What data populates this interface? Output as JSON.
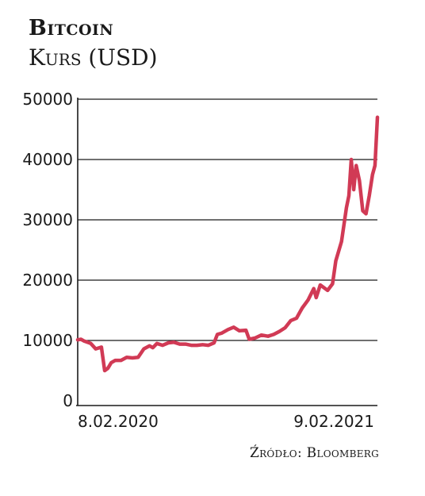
{
  "chart_data": {
    "type": "line",
    "title": "Bitcoin",
    "subtitle": "Kurs (USD)",
    "source": "Źródło: Bloomberg",
    "ylim": [
      0,
      50000
    ],
    "yticks": [
      0,
      10000,
      20000,
      30000,
      40000,
      50000
    ],
    "ytick_labels": [
      "0",
      "10000",
      "20000",
      "30000",
      "40000",
      "50000"
    ],
    "xlim": [
      "2020-02-08",
      "2021-02-09"
    ],
    "xticks": [
      {
        "date": "2020-02-08",
        "label": "8.02.2020"
      },
      {
        "date": "2021-02-09",
        "label": "9.02.2021"
      }
    ],
    "grid": true,
    "line_color": "#d13a55",
    "series": [
      {
        "x": [
          "2020-02-08",
          "2020-02-12",
          "2020-02-16",
          "2020-02-20",
          "2020-02-24",
          "2020-03-01",
          "2020-03-08",
          "2020-03-12",
          "2020-03-16",
          "2020-03-20",
          "2020-03-25",
          "2020-04-01",
          "2020-04-08",
          "2020-04-15",
          "2020-04-22",
          "2020-04-29",
          "2020-05-06",
          "2020-05-10",
          "2020-05-15",
          "2020-05-22",
          "2020-05-29",
          "2020-06-05",
          "2020-06-12",
          "2020-06-19",
          "2020-06-26",
          "2020-07-03",
          "2020-07-10",
          "2020-07-17",
          "2020-07-24",
          "2020-07-28",
          "2020-08-02",
          "2020-08-10",
          "2020-08-17",
          "2020-08-24",
          "2020-09-01",
          "2020-09-05",
          "2020-09-12",
          "2020-09-20",
          "2020-09-28",
          "2020-10-05",
          "2020-10-12",
          "2020-10-19",
          "2020-10-26",
          "2020-11-02",
          "2020-11-09",
          "2020-11-16",
          "2020-11-23",
          "2020-11-26",
          "2020-12-01",
          "2020-12-10",
          "2020-12-16",
          "2020-12-20",
          "2020-12-27",
          "2021-01-02",
          "2021-01-05",
          "2021-01-08",
          "2021-01-11",
          "2021-01-14",
          "2021-01-18",
          "2021-01-22",
          "2021-01-26",
          "2021-01-30",
          "2021-02-03",
          "2021-02-06",
          "2021-02-09"
        ],
        "y": [
          10100,
          10200,
          9900,
          9700,
          9500,
          8600,
          8900,
          5000,
          5400,
          6300,
          6700,
          6700,
          7200,
          7100,
          7200,
          8600,
          9100,
          8800,
          9500,
          9200,
          9600,
          9700,
          9400,
          9400,
          9200,
          9200,
          9300,
          9200,
          9600,
          11000,
          11200,
          11800,
          12200,
          11600,
          11700,
          10200,
          10400,
          10900,
          10700,
          11000,
          11500,
          12100,
          13300,
          13700,
          15400,
          16700,
          18600,
          17100,
          19200,
          18300,
          19400,
          23200,
          26400,
          32000,
          34000,
          40000,
          35000,
          39000,
          36500,
          31500,
          31000,
          34000,
          37500,
          39000,
          47000
        ]
      }
    ]
  }
}
